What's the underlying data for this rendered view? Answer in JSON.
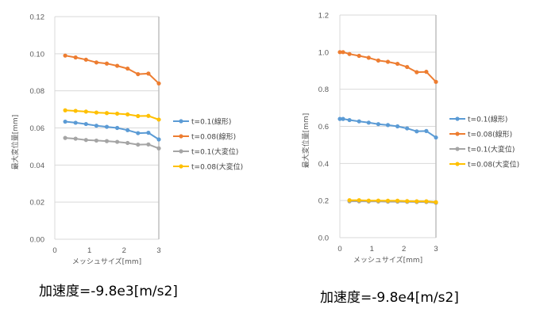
{
  "chart_data": [
    {
      "type": "line",
      "title": "",
      "caption": "加速度=-9.8e3[m/s2]",
      "xlabel": "メッシュサイズ[mm]",
      "ylabel": "最大変位量[mm]",
      "xlim": [
        0,
        3
      ],
      "ylim": [
        0,
        0.12
      ],
      "xticks": [
        "0",
        "1",
        "2",
        "3"
      ],
      "yticks": [
        "0.00",
        "0.02",
        "0.04",
        "0.06",
        "0.08",
        "0.10",
        "0.12"
      ],
      "grid": true,
      "legend_position": "right",
      "series": [
        {
          "name": "t=0.1(線形)",
          "color": "#5B9BD5",
          "x": [
            0.3,
            0.6,
            0.9,
            1.2,
            1.5,
            1.8,
            2.1,
            2.4,
            2.7,
            3.0
          ],
          "y": [
            0.0634,
            0.0628,
            0.0621,
            0.0612,
            0.0606,
            0.06,
            0.0588,
            0.0572,
            0.0574,
            0.0538
          ]
        },
        {
          "name": "t=0.08(線形)",
          "color": "#ED7D31",
          "x": [
            0.3,
            0.6,
            0.9,
            1.2,
            1.5,
            1.8,
            2.1,
            2.4,
            2.7,
            3.0
          ],
          "y": [
            0.099,
            0.098,
            0.0968,
            0.0953,
            0.0947,
            0.0935,
            0.092,
            0.089,
            0.0893,
            0.084
          ]
        },
        {
          "name": "t=0.1(大変位)",
          "color": "#A5A5A5",
          "x": [
            0.3,
            0.6,
            0.9,
            1.2,
            1.5,
            1.8,
            2.1,
            2.4,
            2.7,
            3.0
          ],
          "y": [
            0.0546,
            0.0542,
            0.0535,
            0.0532,
            0.0529,
            0.0525,
            0.0519,
            0.051,
            0.0511,
            0.049
          ]
        },
        {
          "name": "t=0.08(大変位)",
          "color": "#FFC000",
          "x": [
            0.3,
            0.6,
            0.9,
            1.2,
            1.5,
            1.8,
            2.1,
            2.4,
            2.7,
            3.0
          ],
          "y": [
            0.0695,
            0.0692,
            0.0688,
            0.0683,
            0.068,
            0.0677,
            0.0673,
            0.0664,
            0.0665,
            0.0645
          ]
        }
      ]
    },
    {
      "type": "line",
      "title": "",
      "caption": "加速度=-9.8e4[m/s2]",
      "xlabel": "メッシュサイズ[mm]",
      "ylabel": "最大変位量[mm]",
      "xlim": [
        0,
        3
      ],
      "ylim": [
        0,
        1.2
      ],
      "xticks": [
        "0",
        "1",
        "2",
        "3"
      ],
      "yticks": [
        "0.0",
        "0.2",
        "0.4",
        "0.6",
        "0.8",
        "1.0",
        "1.2"
      ],
      "grid": true,
      "legend_position": "right",
      "series": [
        {
          "name": "t=0.1(線形)",
          "color": "#5B9BD5",
          "x": [
            0.0,
            0.1,
            0.3,
            0.6,
            0.9,
            1.2,
            1.5,
            1.8,
            2.1,
            2.4,
            2.7,
            3.0
          ],
          "y": [
            0.64,
            0.64,
            0.634,
            0.627,
            0.62,
            0.612,
            0.607,
            0.6,
            0.589,
            0.573,
            0.575,
            0.54
          ]
        },
        {
          "name": "t=0.08(線形)",
          "color": "#ED7D31",
          "x": [
            0.0,
            0.1,
            0.3,
            0.6,
            0.9,
            1.2,
            1.5,
            1.8,
            2.1,
            2.4,
            2.7,
            3.0
          ],
          "y": [
            1.0,
            1.0,
            0.99,
            0.98,
            0.97,
            0.955,
            0.948,
            0.937,
            0.92,
            0.892,
            0.894,
            0.84
          ]
        },
        {
          "name": "t=0.1(大変位)",
          "color": "#A5A5A5",
          "x": [
            0.3,
            0.6,
            0.9,
            1.2,
            1.5,
            1.8,
            2.1,
            2.4,
            2.7,
            3.0
          ],
          "y": [
            0.196,
            0.196,
            0.195,
            0.195,
            0.194,
            0.194,
            0.193,
            0.192,
            0.192,
            0.188
          ]
        },
        {
          "name": "t=0.08(大変位)",
          "color": "#FFC000",
          "x": [
            0.3,
            0.6,
            0.9,
            1.2,
            1.5,
            1.8,
            2.1,
            2.4,
            2.7,
            3.0
          ],
          "y": [
            0.202,
            0.202,
            0.2,
            0.2,
            0.199,
            0.199,
            0.197,
            0.196,
            0.196,
            0.191
          ]
        }
      ]
    }
  ]
}
